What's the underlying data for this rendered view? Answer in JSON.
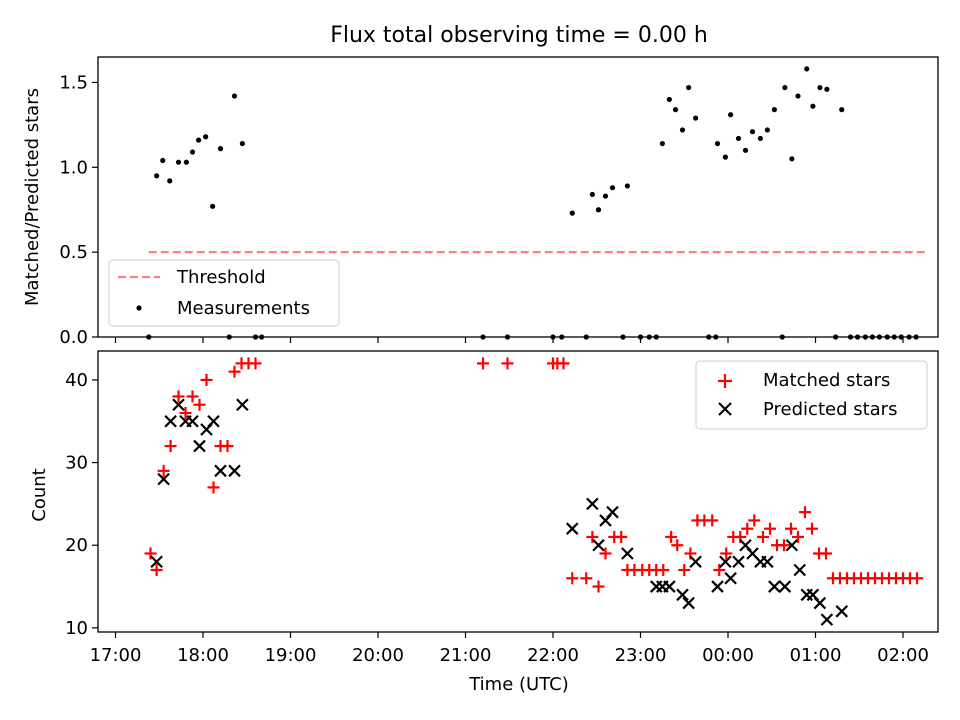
{
  "chart_data": [
    {
      "type": "scatter",
      "title": "Flux total observing time = 0.00 h",
      "xlabel": "",
      "ylabel": "Matched/Predicted stars",
      "xlim": [
        -0.2,
        9.4
      ],
      "ylim": [
        0,
        1.65
      ],
      "yticks": [
        0.0,
        0.5,
        1.0,
        1.5
      ],
      "ytick_labels": [
        "0.0",
        "0.5",
        "1.0",
        "1.5"
      ],
      "legend_position": "lower-left",
      "series": [
        {
          "name": "Threshold",
          "kind": "dashed-line",
          "color": "#ff7f7f",
          "points": [
            [
              0.38,
              0.5
            ],
            [
              9.25,
              0.5
            ]
          ]
        },
        {
          "name": "Measurements",
          "kind": "dots",
          "color": "#000000",
          "points": [
            [
              0.47,
              0.95
            ],
            [
              0.54,
              1.04
            ],
            [
              0.62,
              0.92
            ],
            [
              0.72,
              1.03
            ],
            [
              0.81,
              1.03
            ],
            [
              0.88,
              1.09
            ],
            [
              0.95,
              1.16
            ],
            [
              1.03,
              1.18
            ],
            [
              1.11,
              0.77
            ],
            [
              1.2,
              1.11
            ],
            [
              1.36,
              1.42
            ],
            [
              1.45,
              1.14
            ],
            [
              5.22,
              0.73
            ],
            [
              5.45,
              0.84
            ],
            [
              5.52,
              0.75
            ],
            [
              5.6,
              0.83
            ],
            [
              5.68,
              0.88
            ],
            [
              5.85,
              0.89
            ],
            [
              6.25,
              1.14
            ],
            [
              6.33,
              1.4
            ],
            [
              6.4,
              1.34
            ],
            [
              6.48,
              1.22
            ],
            [
              6.55,
              1.47
            ],
            [
              6.63,
              1.29
            ],
            [
              6.88,
              1.14
            ],
            [
              6.97,
              1.06
            ],
            [
              7.03,
              1.31
            ],
            [
              7.12,
              1.17
            ],
            [
              7.2,
              1.1
            ],
            [
              7.28,
              1.21
            ],
            [
              7.37,
              1.17
            ],
            [
              7.45,
              1.22
            ],
            [
              7.53,
              1.34
            ],
            [
              7.65,
              1.47
            ],
            [
              7.73,
              1.05
            ],
            [
              7.8,
              1.42
            ],
            [
              7.9,
              1.58
            ],
            [
              7.97,
              1.36
            ],
            [
              8.05,
              1.47
            ],
            [
              8.13,
              1.46
            ],
            [
              8.3,
              1.34
            ],
            [
              0.38,
              0.0
            ],
            [
              1.3,
              0.0
            ],
            [
              1.6,
              0.0
            ],
            [
              1.67,
              0.0
            ],
            [
              4.2,
              0.0
            ],
            [
              4.48,
              0.0
            ],
            [
              5.0,
              0.0
            ],
            [
              5.1,
              0.0
            ],
            [
              5.38,
              0.0
            ],
            [
              5.8,
              0.0
            ],
            [
              6.0,
              0.0
            ],
            [
              6.1,
              0.0
            ],
            [
              6.18,
              0.0
            ],
            [
              6.78,
              0.0
            ],
            [
              6.86,
              0.0
            ],
            [
              7.62,
              0.0
            ],
            [
              8.23,
              0.0
            ],
            [
              8.4,
              0.0
            ],
            [
              8.48,
              0.0
            ],
            [
              8.57,
              0.0
            ],
            [
              8.65,
              0.0
            ],
            [
              8.73,
              0.0
            ],
            [
              8.82,
              0.0
            ],
            [
              8.9,
              0.0
            ],
            [
              8.98,
              0.0
            ],
            [
              9.07,
              0.0
            ],
            [
              9.15,
              0.0
            ]
          ]
        }
      ]
    },
    {
      "type": "scatter",
      "title": "",
      "xlabel": "Time (UTC)",
      "ylabel": "Count",
      "xlim": [
        -0.2,
        9.4
      ],
      "ylim": [
        9.5,
        43.5
      ],
      "yticks": [
        10,
        20,
        30,
        40
      ],
      "ytick_labels": [
        "10",
        "20",
        "30",
        "40"
      ],
      "xticks": [
        0,
        1,
        2,
        3,
        4,
        5,
        6,
        7,
        8,
        9
      ],
      "xtick_labels": [
        "17:00",
        "18:00",
        "19:00",
        "20:00",
        "21:00",
        "22:00",
        "23:00",
        "00:00",
        "01:00",
        "02:00"
      ],
      "legend_position": "upper-right",
      "series": [
        {
          "name": "Matched stars",
          "marker": "plus",
          "color": "#ff0000",
          "points": [
            [
              0.4,
              19
            ],
            [
              0.47,
              17
            ],
            [
              0.55,
              29
            ],
            [
              0.63,
              32
            ],
            [
              0.72,
              38
            ],
            [
              0.8,
              36
            ],
            [
              0.88,
              38
            ],
            [
              0.96,
              37
            ],
            [
              1.04,
              40
            ],
            [
              1.12,
              27
            ],
            [
              1.2,
              32
            ],
            [
              1.28,
              32
            ],
            [
              1.36,
              41
            ],
            [
              1.44,
              42
            ],
            [
              1.52,
              42
            ],
            [
              1.6,
              42
            ],
            [
              4.2,
              42
            ],
            [
              4.48,
              42
            ],
            [
              5.0,
              42
            ],
            [
              5.05,
              42
            ],
            [
              5.12,
              42
            ],
            [
              5.22,
              16
            ],
            [
              5.38,
              16
            ],
            [
              5.45,
              21
            ],
            [
              5.52,
              15
            ],
            [
              5.6,
              19
            ],
            [
              5.7,
              21
            ],
            [
              5.78,
              21
            ],
            [
              5.85,
              17
            ],
            [
              5.93,
              17
            ],
            [
              6.02,
              17
            ],
            [
              6.1,
              17
            ],
            [
              6.18,
              17
            ],
            [
              6.26,
              17
            ],
            [
              6.35,
              21
            ],
            [
              6.42,
              20
            ],
            [
              6.5,
              17
            ],
            [
              6.57,
              19
            ],
            [
              6.65,
              23
            ],
            [
              6.73,
              23
            ],
            [
              6.82,
              23
            ],
            [
              6.9,
              17
            ],
            [
              6.98,
              19
            ],
            [
              7.06,
              21
            ],
            [
              7.14,
              21
            ],
            [
              7.22,
              22
            ],
            [
              7.3,
              23
            ],
            [
              7.4,
              21
            ],
            [
              7.48,
              22
            ],
            [
              7.56,
              20
            ],
            [
              7.64,
              20
            ],
            [
              7.72,
              22
            ],
            [
              7.8,
              21
            ],
            [
              7.88,
              24
            ],
            [
              7.96,
              22
            ],
            [
              8.04,
              19
            ],
            [
              8.12,
              19
            ],
            [
              8.2,
              16
            ],
            [
              8.28,
              16
            ],
            [
              8.36,
              16
            ],
            [
              8.44,
              16
            ],
            [
              8.52,
              16
            ],
            [
              8.6,
              16
            ],
            [
              8.68,
              16
            ],
            [
              8.76,
              16
            ],
            [
              8.84,
              16
            ],
            [
              8.92,
              16
            ],
            [
              9.0,
              16
            ],
            [
              9.08,
              16
            ],
            [
              9.16,
              16
            ]
          ]
        },
        {
          "name": "Predicted stars",
          "marker": "x",
          "color": "#000000",
          "points": [
            [
              0.47,
              18
            ],
            [
              0.55,
              28
            ],
            [
              0.63,
              35
            ],
            [
              0.72,
              37
            ],
            [
              0.8,
              35
            ],
            [
              0.88,
              35
            ],
            [
              0.96,
              32
            ],
            [
              1.04,
              34
            ],
            [
              1.12,
              35
            ],
            [
              1.2,
              29
            ],
            [
              1.36,
              29
            ],
            [
              1.45,
              37
            ],
            [
              5.22,
              22
            ],
            [
              5.45,
              25
            ],
            [
              5.52,
              20
            ],
            [
              5.6,
              23
            ],
            [
              5.68,
              24
            ],
            [
              5.85,
              19
            ],
            [
              6.18,
              15
            ],
            [
              6.25,
              15
            ],
            [
              6.33,
              15
            ],
            [
              6.48,
              14
            ],
            [
              6.55,
              13
            ],
            [
              6.63,
              18
            ],
            [
              6.88,
              15
            ],
            [
              6.97,
              18
            ],
            [
              7.03,
              16
            ],
            [
              7.12,
              18
            ],
            [
              7.2,
              20
            ],
            [
              7.28,
              19
            ],
            [
              7.37,
              18
            ],
            [
              7.45,
              18
            ],
            [
              7.53,
              15
            ],
            [
              7.65,
              15
            ],
            [
              7.73,
              20
            ],
            [
              7.82,
              17
            ],
            [
              7.9,
              14
            ],
            [
              7.97,
              14
            ],
            [
              8.05,
              13
            ],
            [
              8.13,
              11
            ],
            [
              8.3,
              12
            ]
          ]
        }
      ]
    }
  ]
}
